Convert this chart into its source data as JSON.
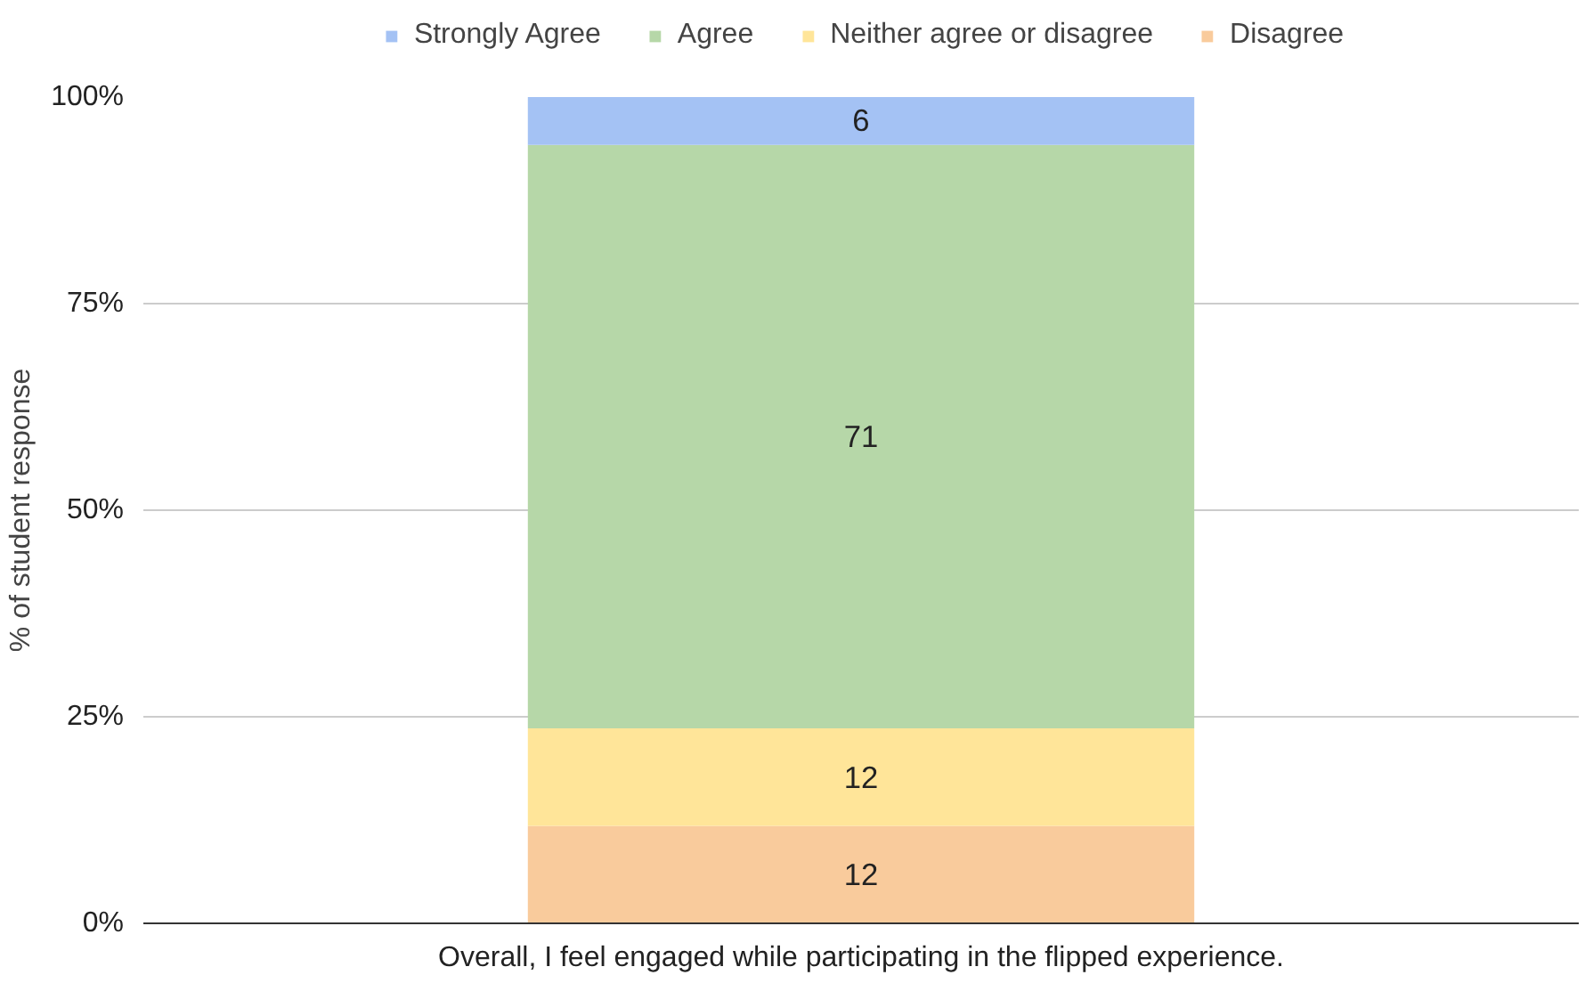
{
  "chart_data": {
    "type": "bar",
    "stacked": true,
    "ylabel": "% of student response",
    "categories": [
      "Overall, I feel engaged while participating in the flipped experience."
    ],
    "series": [
      {
        "name": "Disagree",
        "color": "#f9cb9c",
        "values": [
          11.8
        ],
        "value_labels": [
          "12"
        ]
      },
      {
        "name": "Neither agree or disagree",
        "color": "#ffe599",
        "values": [
          11.8
        ],
        "value_labels": [
          "12"
        ]
      },
      {
        "name": "Agree",
        "color": "#b6d7a8",
        "values": [
          70.6
        ],
        "value_labels": [
          "71"
        ]
      },
      {
        "name": "Strongly Agree",
        "color": "#a4c2f4",
        "values": [
          5.9
        ],
        "value_labels": [
          "6"
        ]
      }
    ],
    "ylim": [
      0,
      100
    ],
    "yticks": [
      {
        "value": 0,
        "label": "0%"
      },
      {
        "value": 25,
        "label": "25%"
      },
      {
        "value": 50,
        "label": "50%"
      },
      {
        "value": 75,
        "label": "75%"
      },
      {
        "value": 100,
        "label": "100%"
      }
    ],
    "grid": "y",
    "legend": "top"
  }
}
